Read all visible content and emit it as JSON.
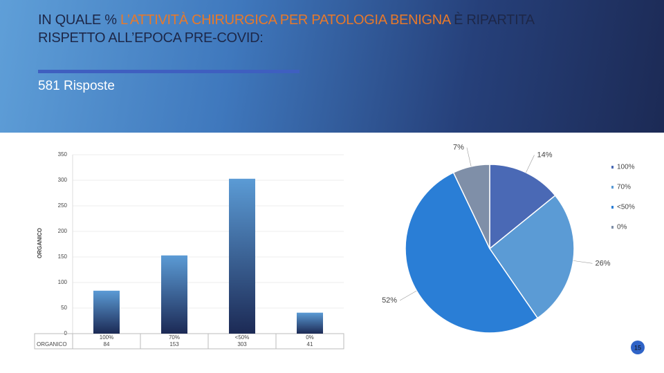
{
  "title_parts": [
    "IN QUALE %",
    "L’ATTIVITÀ CHIRURGICA PER PATOLOGIA BENIGNA",
    "È RIPARTITA",
    "RISPETTO ALL’EPOCA PRE-COVID:"
  ],
  "subtitle": "581 Risposte",
  "page_number": "15",
  "chart_data": [
    {
      "type": "bar",
      "y_label": "ORGANICO",
      "series_name": "ORGANICO",
      "categories": [
        "100%",
        "70%",
        "<50%",
        "0%"
      ],
      "values": [
        84,
        153,
        303,
        41
      ],
      "color": "#5b9bd5",
      "ylim": [
        0,
        350
      ],
      "yticks": [
        0,
        50,
        100,
        150,
        200,
        250,
        300,
        350
      ],
      "grid": true
    },
    {
      "type": "pie",
      "categories": [
        "100%",
        "70%",
        "<50%",
        "0%"
      ],
      "values": [
        14,
        26,
        52,
        7
      ],
      "value_labels": [
        "14%",
        "26%",
        "52%",
        "7%"
      ],
      "colors": [
        "#4a69b5",
        "#5b9bd5",
        "#2a7ed6",
        "#7f8fa8"
      ],
      "legend": "right"
    }
  ]
}
